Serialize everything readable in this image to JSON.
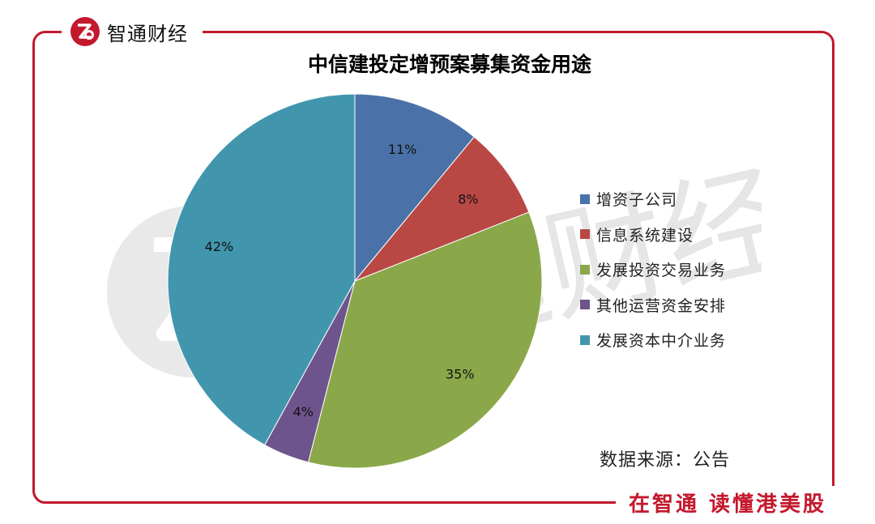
{
  "brand": {
    "name": "智通财经",
    "logo_icon": "zhitong-logo-icon",
    "slogan": "在智通 读懂港美股",
    "accent_color": "#c4182c"
  },
  "watermark": {
    "text": "智通财经",
    "icon": "zhitong-watermark-icon"
  },
  "source_note": "数据来源：公告",
  "chart_data": {
    "type": "pie",
    "title": "中信建投定增预案募集资金用途",
    "categories": [
      "增资子公司",
      "信息系统建设",
      "发展投资交易业务",
      "其他运营资金安排",
      "发展资本中介业务"
    ],
    "values": [
      11,
      8,
      35,
      4,
      42
    ],
    "labels": [
      "11%",
      "8%",
      "35%",
      "4%",
      "42%"
    ],
    "colors": [
      "#4a72a8",
      "#b94845",
      "#8aa84a",
      "#6e548c",
      "#4196ad"
    ],
    "start": "12 o'clock",
    "direction": "clockwise",
    "legend_position": "right"
  }
}
